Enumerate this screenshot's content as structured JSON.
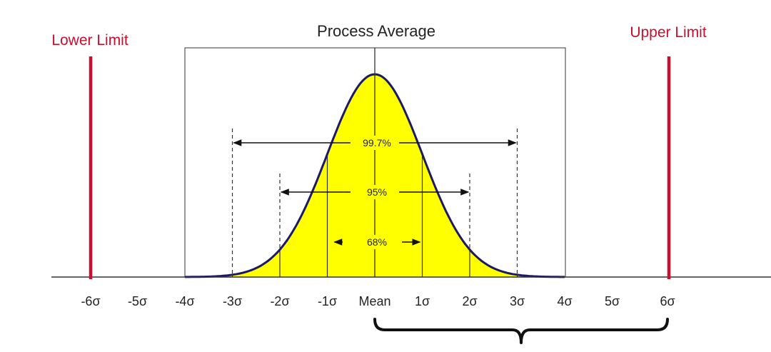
{
  "title": "Process Average",
  "lower_limit": {
    "label": "Lower Limit",
    "sigma": -6
  },
  "upper_limit": {
    "label": "Upper Limit",
    "sigma": 6
  },
  "colors": {
    "curve_fill": "#ffff00",
    "curve_stroke": "#1a1a66",
    "limit_line": "#c8102e",
    "axis": "#333333",
    "box": "#555555"
  },
  "intervals": [
    {
      "label": "99.7%",
      "sigma": 3
    },
    {
      "label": "95%",
      "sigma": 2
    },
    {
      "label": "68%",
      "sigma": 1
    }
  ],
  "ticks": [
    {
      "label": "-6σ",
      "sigma": -6
    },
    {
      "label": "-5σ",
      "sigma": -5
    },
    {
      "label": "-4σ",
      "sigma": -4
    },
    {
      "label": "-3σ",
      "sigma": -3
    },
    {
      "label": "-2σ",
      "sigma": -2
    },
    {
      "label": "-1σ",
      "sigma": -1
    },
    {
      "label": "Mean",
      "sigma": 0
    },
    {
      "label": "1σ",
      "sigma": 1
    },
    {
      "label": "2σ",
      "sigma": 2
    },
    {
      "label": "3σ",
      "sigma": 3
    },
    {
      "label": "4σ",
      "sigma": 4
    },
    {
      "label": "5σ",
      "sigma": 5
    },
    {
      "label": "6σ",
      "sigma": 6
    }
  ],
  "brace_range": [
    0,
    6
  ]
}
